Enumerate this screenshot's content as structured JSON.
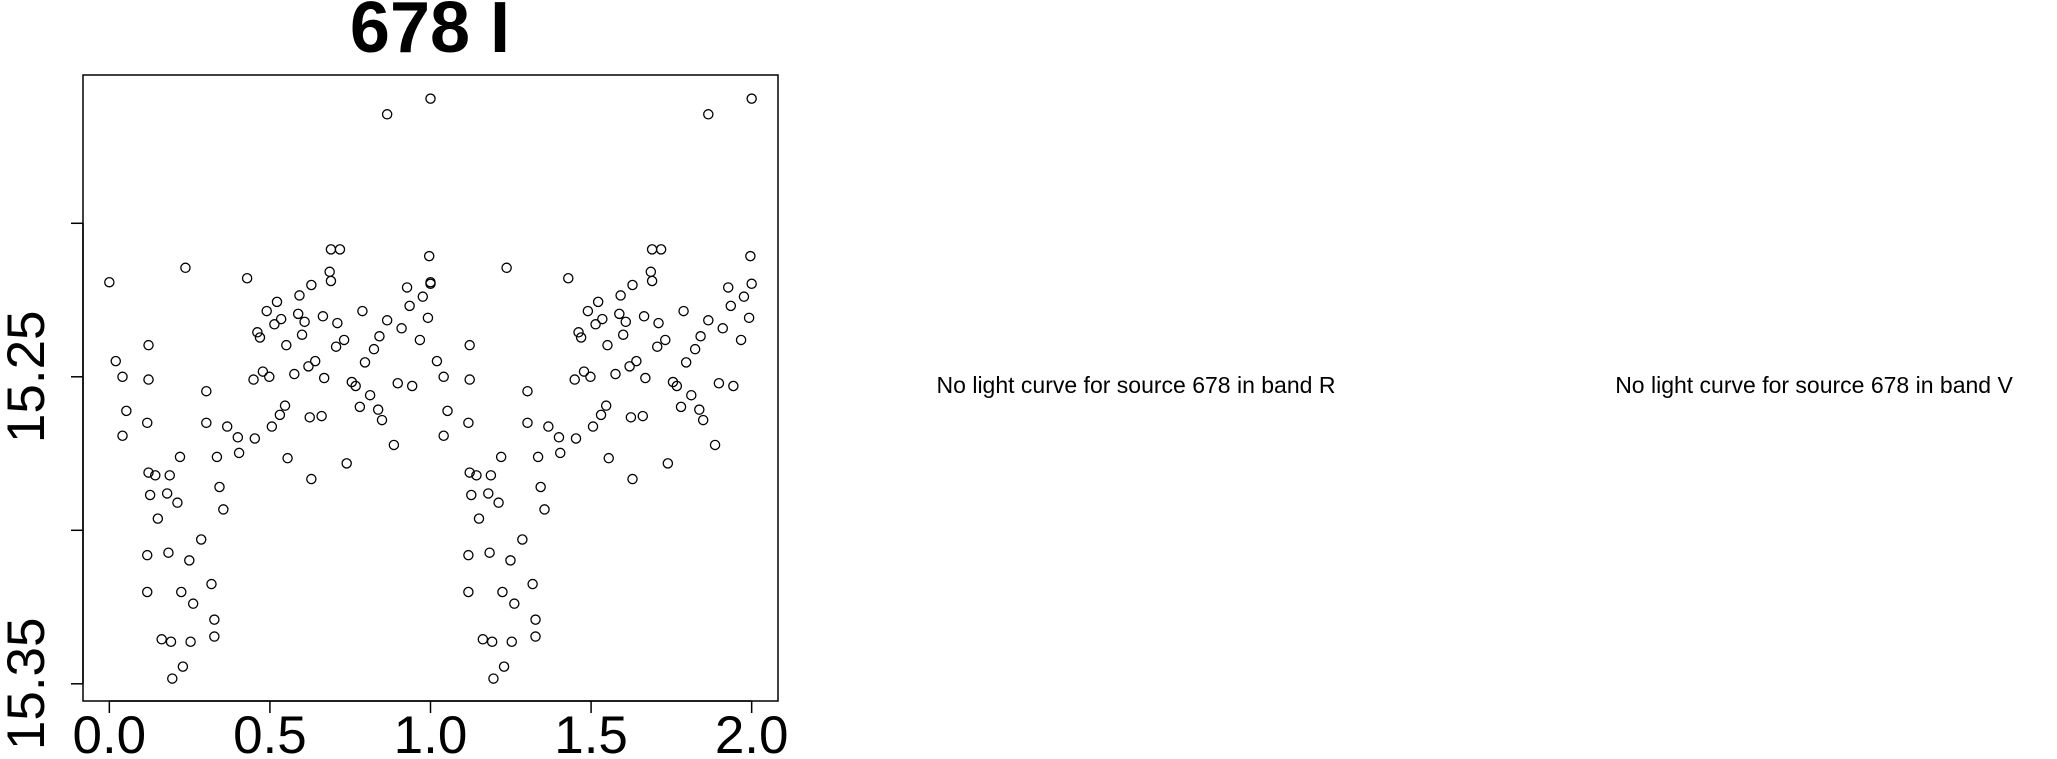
{
  "chart_data": {
    "type": "scatter",
    "title": "678 I",
    "annotations": [
      "No light curve for source 678 in band R",
      "No light curve for source 678 in band V"
    ],
    "xlim": [
      -0.082,
      2.082
    ],
    "ylim": [
      15.3556,
      15.1517
    ],
    "xticks": [
      {
        "value": 0,
        "label": "0.0"
      },
      {
        "value": 0.5,
        "label": "0.5"
      },
      {
        "value": 1,
        "label": "1.0"
      },
      {
        "value": 1.5,
        "label": "1.5"
      },
      {
        "value": 2,
        "label": "2.0"
      }
    ],
    "yticks": [
      {
        "value": 15.2,
        "label": null
      },
      15.25,
      {
        "value": 15.3,
        "label": null
      },
      15.35
    ],
    "series": [
      {
        "color": "#000000",
        "x": [
          0.0,
          0.02,
          0.041,
          0.053,
          0.041,
          0.122,
          0.122,
          0.118,
          0.122,
          0.127,
          0.118,
          0.118,
          0.143,
          0.151,
          0.163,
          0.18,
          0.188,
          0.184,
          0.192,
          0.196,
          0.212,
          0.22,
          0.224,
          0.229,
          0.237,
          0.249,
          0.253,
          0.261,
          0.286,
          0.302,
          0.302,
          0.318,
          0.327,
          0.327,
          0.335,
          0.343,
          0.355,
          0.367,
          0.4,
          0.404,
          0.429,
          0.449,
          0.453,
          0.461,
          0.469,
          0.478,
          0.49,
          0.498,
          0.506,
          0.514,
          0.522,
          0.531,
          0.535,
          0.547,
          0.551,
          0.555,
          0.576,
          0.588,
          0.592,
          0.6,
          0.608,
          0.62,
          0.624,
          0.629,
          0.629,
          0.641,
          0.661,
          0.665,
          0.669,
          0.686,
          0.69,
          0.69,
          0.706,
          0.71,
          0.718,
          0.731,
          0.739,
          0.755,
          0.767,
          0.78,
          0.788,
          0.796,
          0.812,
          0.824,
          0.837,
          0.849,
          0.841,
          0.865,
          0.865,
          0.886,
          0.898,
          0.91,
          0.927,
          0.935,
          0.943,
          0.967,
          0.976,
          0.992,
          0.996,
          1.0,
          1.0,
          1.0,
          1.02,
          1.041,
          1.053,
          1.041,
          1.122,
          1.122,
          1.118,
          1.122,
          1.127,
          1.118,
          1.118,
          1.143,
          1.151,
          1.163,
          1.18,
          1.188,
          1.184,
          1.192,
          1.196,
          1.212,
          1.22,
          1.224,
          1.229,
          1.237,
          1.249,
          1.253,
          1.261,
          1.286,
          1.302,
          1.302,
          1.318,
          1.327,
          1.327,
          1.335,
          1.343,
          1.355,
          1.367,
          1.4,
          1.404,
          1.429,
          1.449,
          1.453,
          1.461,
          1.469,
          1.478,
          1.49,
          1.498,
          1.506,
          1.514,
          1.522,
          1.531,
          1.535,
          1.547,
          1.551,
          1.555,
          1.576,
          1.588,
          1.592,
          1.6,
          1.608,
          1.62,
          1.624,
          1.629,
          1.629,
          1.641,
          1.661,
          1.665,
          1.669,
          1.686,
          1.69,
          1.69,
          1.706,
          1.71,
          1.718,
          1.731,
          1.739,
          1.755,
          1.767,
          1.78,
          1.788,
          1.796,
          1.812,
          1.824,
          1.837,
          1.849,
          1.841,
          1.865,
          1.865,
          1.886,
          1.898,
          1.91,
          1.927,
          1.935,
          1.943,
          1.967,
          1.976,
          1.992,
          1.996,
          2.0,
          2.0
        ],
        "values": [
          15.2192,
          15.2449,
          15.25,
          15.2611,
          15.2692,
          15.2397,
          15.2509,
          15.265,
          15.2812,
          15.2885,
          15.3081,
          15.3201,
          15.2821,
          15.2962,
          15.3355,
          15.288,
          15.2821,
          15.3073,
          15.3363,
          15.3483,
          15.291,
          15.2761,
          15.3201,
          15.3444,
          15.2145,
          15.3098,
          15.3363,
          15.3239,
          15.303,
          15.2547,
          15.265,
          15.3175,
          15.3291,
          15.3346,
          15.2761,
          15.2859,
          15.2932,
          15.2662,
          15.2697,
          15.2748,
          15.2179,
          15.2509,
          15.2701,
          15.2355,
          15.2372,
          15.2483,
          15.2286,
          15.25,
          15.2662,
          15.2329,
          15.2256,
          15.2624,
          15.2312,
          15.2594,
          15.2397,
          15.2765,
          15.2491,
          15.2295,
          15.2235,
          15.2363,
          15.2321,
          15.2466,
          15.2632,
          15.2201,
          15.2833,
          15.2449,
          15.2628,
          15.2303,
          15.2504,
          15.2158,
          15.2085,
          15.2188,
          15.2402,
          15.2325,
          15.2085,
          15.238,
          15.2782,
          15.2517,
          15.253,
          15.2598,
          15.2286,
          15.2453,
          15.256,
          15.241,
          15.2607,
          15.2641,
          15.2368,
          15.1645,
          15.2316,
          15.2722,
          15.2521,
          15.2342,
          15.2209,
          15.2269,
          15.253,
          15.238,
          15.2239,
          15.2308,
          15.2107,
          15.2197,
          15.1594,
          15.2192,
          15.2449,
          15.25,
          15.2611,
          15.2692,
          15.2397,
          15.2509,
          15.265,
          15.2812,
          15.2885,
          15.3081,
          15.3201,
          15.2821,
          15.2962,
          15.3355,
          15.288,
          15.2821,
          15.3073,
          15.3363,
          15.3483,
          15.291,
          15.2761,
          15.3201,
          15.3444,
          15.2145,
          15.3098,
          15.3363,
          15.3239,
          15.303,
          15.2547,
          15.265,
          15.3175,
          15.3291,
          15.3346,
          15.2761,
          15.2859,
          15.2932,
          15.2662,
          15.2697,
          15.2748,
          15.2179,
          15.2509,
          15.2701,
          15.2355,
          15.2372,
          15.2483,
          15.2286,
          15.25,
          15.2662,
          15.2329,
          15.2256,
          15.2624,
          15.2312,
          15.2594,
          15.2397,
          15.2765,
          15.2491,
          15.2295,
          15.2235,
          15.2363,
          15.2321,
          15.2466,
          15.2632,
          15.2201,
          15.2833,
          15.2449,
          15.2628,
          15.2303,
          15.2504,
          15.2158,
          15.2085,
          15.2188,
          15.2402,
          15.2325,
          15.2085,
          15.238,
          15.2782,
          15.2517,
          15.253,
          15.2598,
          15.2286,
          15.2453,
          15.256,
          15.241,
          15.2607,
          15.2641,
          15.2368,
          15.1645,
          15.2316,
          15.2722,
          15.2521,
          15.2342,
          15.2209,
          15.2269,
          15.253,
          15.238,
          15.2239,
          15.2308,
          15.2107,
          15.2197,
          15.1594
        ]
      }
    ]
  }
}
